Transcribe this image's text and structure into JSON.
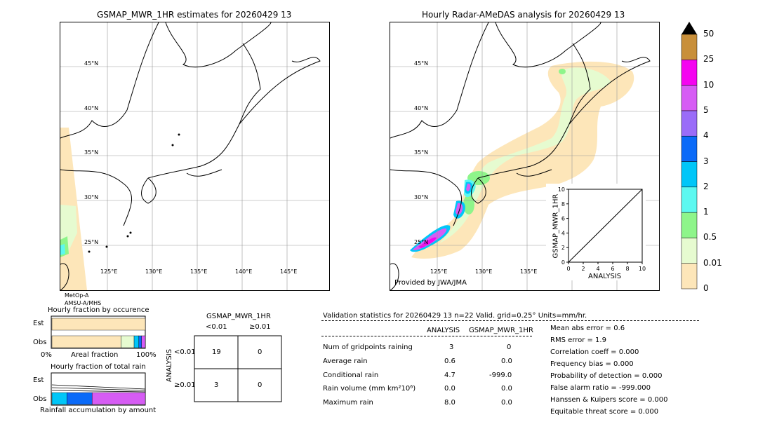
{
  "left_map": {
    "title": "GSMAP_MWR_1HR estimates for 20260429 13",
    "lat_labels": [
      "45°N",
      "40°N",
      "35°N",
      "30°N",
      "25°N"
    ],
    "lon_labels": [
      "125°E",
      "130°E",
      "135°E",
      "140°E",
      "145°E"
    ],
    "satellite_lines": [
      "MetOp-A",
      "AMSU-A/MHS"
    ]
  },
  "right_map": {
    "title": "Hourly Radar-AMeDAS analysis for 20260429 13",
    "lat_labels": [
      "45°N",
      "40°N",
      "35°N",
      "30°N",
      "25°N"
    ],
    "lon_labels": [
      "125°E",
      "130°E",
      "135°E"
    ],
    "credit": "Provided by JWA/JMA"
  },
  "scatter_inset": {
    "xlabel": "ANALYSIS",
    "ylabel": "GSMAP_MWR_1HR",
    "ticks": [
      "0",
      "2",
      "4",
      "6",
      "8",
      "10"
    ]
  },
  "colorbar": {
    "labels": [
      "0",
      "0.01",
      "0.5",
      "1",
      "2",
      "3",
      "4",
      "5",
      "10",
      "25",
      "50"
    ],
    "colors": [
      "#fde6b9",
      "#e6fbd0",
      "#8ef58a",
      "#5cf8f0",
      "#00c6f8",
      "#0a6af8",
      "#9a6cf8",
      "#d65cf4",
      "#f404f0",
      "#c88f3a"
    ],
    "extend_color": "#000000"
  },
  "occurrence": {
    "title": "Hourly fraction by occurence",
    "row_est": "Est",
    "row_obs": "Obs",
    "x_left": "0%",
    "x_mid": "Areal fraction",
    "x_right": "100%"
  },
  "total_rain": {
    "title": "Hourly fraction of total rain",
    "row_est": "Est",
    "row_obs": "Obs",
    "x_caption": "Rainfall accumulation by amount"
  },
  "contingency": {
    "title": "GSMAP_MWR_1HR",
    "col_lt": "<0.01",
    "col_ge": "≥0.01",
    "row_axis": "ANALYSIS",
    "row_lt": "<0.01",
    "row_ge": "≥0.01",
    "cells": [
      [
        "19",
        "0"
      ],
      [
        "3",
        "0"
      ]
    ]
  },
  "validation": {
    "header": "Validation statistics for 20260429 13  n=22 Valid. grid=0.25° Units=mm/hr.",
    "col_analysis": "ANALYSIS",
    "col_gsmap": "GSMAP_MWR_1HR",
    "rows": [
      {
        "label": "Num of gridpoints raining",
        "analysis": "3",
        "gsmap": "0"
      },
      {
        "label": "Average rain",
        "analysis": "0.6",
        "gsmap": "0.0"
      },
      {
        "label": "Conditional rain",
        "analysis": "4.7",
        "gsmap": "-999.0"
      },
      {
        "label": "Rain volume (mm km²10⁶)",
        "analysis": "0.0",
        "gsmap": "0.0"
      },
      {
        "label": "Maximum rain",
        "analysis": "8.0",
        "gsmap": "0.0"
      }
    ],
    "scores": [
      "Mean abs error =    0.6",
      "RMS error =    1.9",
      "Correlation coeff =  0.000",
      "Frequency bias =  0.000",
      "Probability of detection =  0.000",
      "False alarm ratio = -999.000",
      "Hanssen & Kuipers score =  0.000",
      "Equitable threat score =  0.000"
    ]
  },
  "chart_data": [
    {
      "type": "scatter",
      "title": "",
      "xlabel": "ANALYSIS",
      "ylabel": "GSMAP_MWR_1HR",
      "xlim": [
        0,
        10
      ],
      "ylim": [
        0,
        10
      ],
      "x": [],
      "y": [],
      "reference_line": "y = x"
    },
    {
      "type": "bar",
      "title": "Hourly fraction by occurence",
      "orientation": "horizontal",
      "categories": [
        "Est",
        "Obs"
      ],
      "xlim": [
        0,
        100
      ],
      "series": [
        {
          "color": "#fde6b9",
          "values": [
            100,
            74
          ]
        },
        {
          "color": "#e6fbd0",
          "values": [
            0,
            14
          ]
        },
        {
          "color": "#00c6f8",
          "values": [
            0,
            5
          ]
        },
        {
          "color": "#0a6af8",
          "values": [
            0,
            3
          ]
        },
        {
          "color": "#d65cf4",
          "values": [
            0,
            4
          ]
        }
      ]
    },
    {
      "type": "bar",
      "title": "Hourly fraction of total rain",
      "orientation": "horizontal",
      "categories": [
        "Est",
        "Obs"
      ],
      "xlim": [
        0,
        100
      ],
      "series": [
        {
          "color": "#00c6f8",
          "values": [
            0,
            16
          ]
        },
        {
          "color": "#0a6af8",
          "values": [
            0,
            27
          ]
        },
        {
          "color": "#d65cf4",
          "values": [
            0,
            57
          ]
        }
      ]
    },
    {
      "type": "table",
      "title": "GSMAP_MWR_1HR",
      "columns": [
        "<0.01",
        "≥0.01"
      ],
      "rows": [
        "<0.01",
        "≥0.01"
      ],
      "values": [
        [
          19,
          0
        ],
        [
          3,
          0
        ]
      ]
    }
  ]
}
